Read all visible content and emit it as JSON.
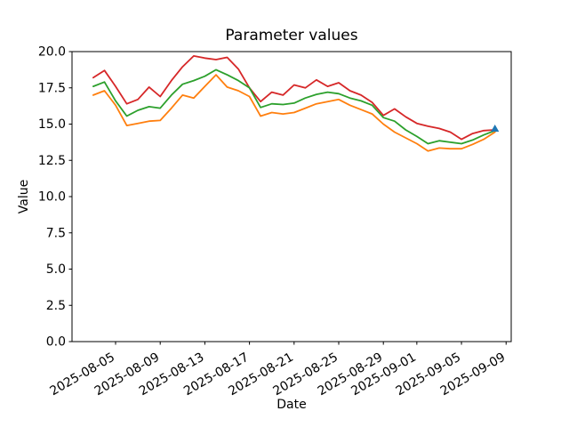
{
  "chart_data": {
    "type": "line",
    "title": "Parameter values",
    "xlabel": "Date",
    "ylabel": "Value",
    "grid": false,
    "legend": null,
    "ylim": [
      0.0,
      20.0
    ],
    "yticks": [
      "0.0",
      "2.5",
      "5.0",
      "7.5",
      "10.0",
      "12.5",
      "15.0",
      "17.5",
      "20.0"
    ],
    "xticks": [
      "2025-08-05",
      "2025-08-09",
      "2025-08-13",
      "2025-08-17",
      "2025-08-21",
      "2025-08-25",
      "2025-08-29",
      "2025-09-01",
      "2025-09-05",
      "2025-09-09"
    ],
    "xtick_rotation": 30,
    "x": [
      "2025-08-03",
      "2025-08-04",
      "2025-08-05",
      "2025-08-06",
      "2025-08-07",
      "2025-08-08",
      "2025-08-09",
      "2025-08-10",
      "2025-08-11",
      "2025-08-12",
      "2025-08-13",
      "2025-08-14",
      "2025-08-15",
      "2025-08-16",
      "2025-08-17",
      "2025-08-18",
      "2025-08-19",
      "2025-08-20",
      "2025-08-21",
      "2025-08-22",
      "2025-08-23",
      "2025-08-24",
      "2025-08-25",
      "2025-08-26",
      "2025-08-27",
      "2025-08-28",
      "2025-08-29",
      "2025-08-30",
      "2025-08-31",
      "2025-09-01",
      "2025-09-02",
      "2025-09-03",
      "2025-09-04",
      "2025-09-05",
      "2025-09-06",
      "2025-09-07",
      "2025-09-08"
    ],
    "series": [
      {
        "color": "#d62728",
        "values": [
          18.2,
          18.7,
          17.6,
          16.4,
          16.7,
          17.55,
          16.9,
          18.0,
          18.95,
          19.7,
          19.55,
          19.45,
          19.6,
          18.8,
          17.5,
          16.55,
          17.2,
          17.0,
          17.7,
          17.5,
          18.05,
          17.6,
          17.85,
          17.3,
          17.0,
          16.5,
          15.6,
          16.05,
          15.5,
          15.05,
          14.85,
          14.7,
          14.45,
          13.95,
          14.35,
          14.55,
          14.6
        ]
      },
      {
        "color": "#2ca02c",
        "values": [
          17.6,
          17.9,
          16.6,
          15.55,
          15.95,
          16.2,
          16.1,
          17.0,
          17.75,
          18.0,
          18.3,
          18.75,
          18.4,
          18.0,
          17.5,
          16.15,
          16.4,
          16.35,
          16.45,
          16.8,
          17.05,
          17.2,
          17.1,
          16.8,
          16.6,
          16.3,
          15.45,
          15.2,
          14.6,
          14.15,
          13.65,
          13.85,
          13.75,
          13.65,
          13.9,
          14.25,
          14.55
        ]
      },
      {
        "color": "#ff7f0e",
        "values": [
          17.0,
          17.3,
          16.3,
          14.9,
          15.05,
          15.2,
          15.25,
          16.1,
          17.0,
          16.8,
          17.6,
          18.4,
          17.55,
          17.3,
          16.9,
          15.55,
          15.8,
          15.7,
          15.8,
          16.1,
          16.4,
          16.55,
          16.7,
          16.3,
          16.0,
          15.7,
          15.0,
          14.45,
          14.05,
          13.65,
          13.15,
          13.35,
          13.3,
          13.3,
          13.6,
          13.95,
          14.45
        ]
      }
    ],
    "end_marker": {
      "shape": "caret-up",
      "color": "#1f77b4",
      "x": "2025-09-08",
      "value": 14.65
    },
    "colors": {
      "background": "#ffffff",
      "axes_edge": "#000000",
      "text": "#000000"
    }
  }
}
